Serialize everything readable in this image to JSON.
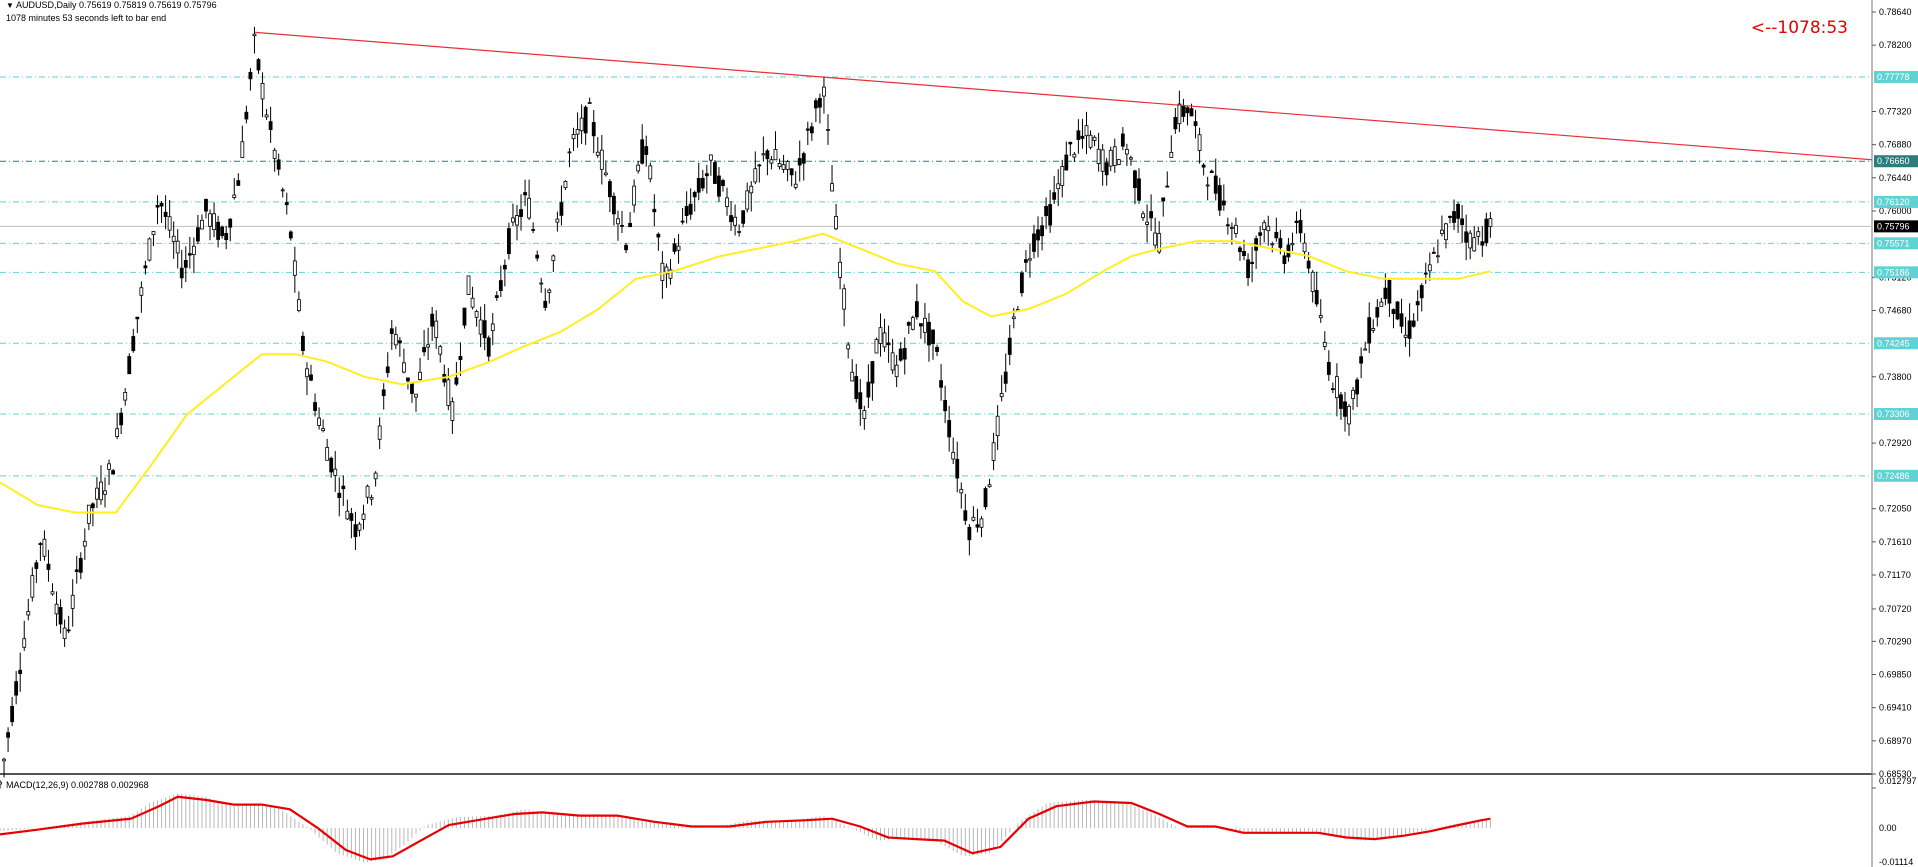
{
  "header": {
    "symbol_line": "AUDUSD,Daily  0.75619 0.75819 0.75619 0.75796",
    "timer_line": "1078 minutes 53 seconds left to bar end"
  },
  "countdown": "<--1078:53",
  "macd": {
    "label": "MACD(12,26,9) 0.002788 0.002968",
    "ticks": [
      "0.012797",
      "0.00",
      "-0.01114"
    ]
  },
  "chart_data": {
    "type": "line",
    "title": "AUDUSD,Daily",
    "price_axis": {
      "ticks": [
        "0.78640",
        "0.78200",
        "0.77320",
        "0.76880",
        "0.76440",
        "0.76000",
        "0.75120",
        "0.74680",
        "0.73800",
        "0.72920",
        "0.72050",
        "0.71610",
        "0.71170",
        "0.70720",
        "0.70290",
        "0.69850",
        "0.69410",
        "0.68970",
        "0.68530"
      ],
      "ylim": [
        0.6853,
        0.7864
      ]
    },
    "current_price": "0.75796",
    "horizontal_levels": [
      {
        "label": "0.77778",
        "value": 0.77778,
        "color": "#5fd3d3"
      },
      {
        "label": "0.76660",
        "value": 0.7666,
        "color": "#2e7d7d"
      },
      {
        "label": "0.76120",
        "value": 0.7612,
        "color": "#5fd3d3"
      },
      {
        "label": "0.75571",
        "value": 0.75571,
        "color": "#5fd3d3"
      },
      {
        "label": "0.75186",
        "value": 0.75186,
        "color": "#5fd3d3"
      },
      {
        "label": "0.74245",
        "value": 0.74245,
        "color": "#5fd3d3"
      },
      {
        "label": "0.73306",
        "value": 0.73306,
        "color": "#5fd3d3"
      },
      {
        "label": "0.72486",
        "value": 0.72486,
        "color": "#5fd3d3"
      }
    ],
    "trendline": {
      "color": "#e8303a",
      "from_bar": 0.1365,
      "to_bar": 1.0,
      "start": 0.7837,
      "end": 0.7668
    },
    "price_path": [
      [
        0,
        0.684
      ],
      [
        0.01,
        0.699
      ],
      [
        0.022,
        0.717
      ],
      [
        0.035,
        0.703
      ],
      [
        0.048,
        0.72
      ],
      [
        0.06,
        0.726
      ],
      [
        0.072,
        0.744
      ],
      [
        0.085,
        0.762
      ],
      [
        0.098,
        0.752
      ],
      [
        0.11,
        0.76
      ],
      [
        0.12,
        0.756
      ],
      [
        0.128,
        0.765
      ],
      [
        0.136,
        0.782
      ],
      [
        0.145,
        0.77
      ],
      [
        0.155,
        0.758
      ],
      [
        0.162,
        0.742
      ],
      [
        0.17,
        0.733
      ],
      [
        0.178,
        0.726
      ],
      [
        0.19,
        0.718
      ],
      [
        0.2,
        0.724
      ],
      [
        0.21,
        0.745
      ],
      [
        0.222,
        0.735
      ],
      [
        0.232,
        0.746
      ],
      [
        0.242,
        0.733
      ],
      [
        0.25,
        0.75
      ],
      [
        0.262,
        0.742
      ],
      [
        0.272,
        0.756
      ],
      [
        0.282,
        0.762
      ],
      [
        0.292,
        0.748
      ],
      [
        0.305,
        0.768
      ],
      [
        0.315,
        0.773
      ],
      [
        0.325,
        0.764
      ],
      [
        0.335,
        0.756
      ],
      [
        0.345,
        0.77
      ],
      [
        0.355,
        0.75
      ],
      [
        0.368,
        0.76
      ],
      [
        0.38,
        0.766
      ],
      [
        0.395,
        0.758
      ],
      [
        0.41,
        0.768
      ],
      [
        0.425,
        0.764
      ],
      [
        0.435,
        0.772
      ],
      [
        0.44,
        0.777
      ],
      [
        0.447,
        0.758
      ],
      [
        0.455,
        0.74
      ],
      [
        0.462,
        0.732
      ],
      [
        0.47,
        0.744
      ],
      [
        0.48,
        0.739
      ],
      [
        0.49,
        0.747
      ],
      [
        0.5,
        0.742
      ],
      [
        0.51,
        0.728
      ],
      [
        0.518,
        0.718
      ],
      [
        0.526,
        0.72
      ],
      [
        0.534,
        0.732
      ],
      [
        0.544,
        0.748
      ],
      [
        0.552,
        0.756
      ],
      [
        0.562,
        0.76
      ],
      [
        0.572,
        0.768
      ],
      [
        0.582,
        0.77
      ],
      [
        0.592,
        0.766
      ],
      [
        0.602,
        0.769
      ],
      [
        0.612,
        0.76
      ],
      [
        0.62,
        0.756
      ],
      [
        0.628,
        0.772
      ],
      [
        0.636,
        0.774
      ],
      [
        0.644,
        0.766
      ],
      [
        0.652,
        0.762
      ],
      [
        0.66,
        0.758
      ],
      [
        0.668,
        0.752
      ],
      [
        0.676,
        0.759
      ],
      [
        0.686,
        0.754
      ],
      [
        0.696,
        0.758
      ],
      [
        0.704,
        0.748
      ],
      [
        0.712,
        0.738
      ],
      [
        0.722,
        0.733
      ],
      [
        0.732,
        0.744
      ],
      [
        0.742,
        0.75
      ],
      [
        0.752,
        0.743
      ],
      [
        0.762,
        0.75
      ],
      [
        0.77,
        0.756
      ],
      [
        0.78,
        0.76
      ],
      [
        0.786,
        0.756
      ],
      [
        0.793,
        0.757
      ],
      [
        0.797,
        0.758
      ]
    ],
    "ma_path": [
      [
        0,
        0.724
      ],
      [
        0.02,
        0.721
      ],
      [
        0.04,
        0.72
      ],
      [
        0.062,
        0.72
      ],
      [
        0.08,
        0.726
      ],
      [
        0.1,
        0.733
      ],
      [
        0.12,
        0.737
      ],
      [
        0.14,
        0.741
      ],
      [
        0.158,
        0.741
      ],
      [
        0.175,
        0.74
      ],
      [
        0.195,
        0.738
      ],
      [
        0.215,
        0.737
      ],
      [
        0.24,
        0.738
      ],
      [
        0.262,
        0.74
      ],
      [
        0.28,
        0.742
      ],
      [
        0.3,
        0.744
      ],
      [
        0.32,
        0.747
      ],
      [
        0.34,
        0.751
      ],
      [
        0.36,
        0.752
      ],
      [
        0.385,
        0.754
      ],
      [
        0.405,
        0.755
      ],
      [
        0.425,
        0.756
      ],
      [
        0.44,
        0.757
      ],
      [
        0.46,
        0.755
      ],
      [
        0.48,
        0.753
      ],
      [
        0.5,
        0.752
      ],
      [
        0.515,
        0.748
      ],
      [
        0.53,
        0.746
      ],
      [
        0.55,
        0.747
      ],
      [
        0.57,
        0.749
      ],
      [
        0.59,
        0.752
      ],
      [
        0.605,
        0.754
      ],
      [
        0.62,
        0.755
      ],
      [
        0.64,
        0.756
      ],
      [
        0.66,
        0.756
      ],
      [
        0.68,
        0.755
      ],
      [
        0.7,
        0.754
      ],
      [
        0.72,
        0.752
      ],
      [
        0.74,
        0.751
      ],
      [
        0.76,
        0.751
      ],
      [
        0.78,
        0.751
      ],
      [
        0.797,
        0.752
      ]
    ],
    "macd_hist_path": [
      [
        0,
        -0.001
      ],
      [
        0.02,
        0.0
      ],
      [
        0.045,
        0.002
      ],
      [
        0.07,
        0.004
      ],
      [
        0.08,
        0.008
      ],
      [
        0.095,
        0.011
      ],
      [
        0.11,
        0.01
      ],
      [
        0.125,
        0.007
      ],
      [
        0.14,
        0.008
      ],
      [
        0.15,
        0.006
      ],
      [
        0.165,
        0.0
      ],
      [
        0.18,
        -0.008
      ],
      [
        0.195,
        -0.011
      ],
      [
        0.205,
        -0.01
      ],
      [
        0.215,
        -0.006
      ],
      [
        0.228,
        0.001
      ],
      [
        0.245,
        0.0035
      ],
      [
        0.265,
        0.004
      ],
      [
        0.28,
        0.006
      ],
      [
        0.3,
        0.004
      ],
      [
        0.32,
        0.0045
      ],
      [
        0.34,
        0.003
      ],
      [
        0.36,
        0.001
      ],
      [
        0.38,
        0.0
      ],
      [
        0.4,
        0.0025
      ],
      [
        0.42,
        0.002
      ],
      [
        0.44,
        0.004
      ],
      [
        0.455,
        0.0
      ],
      [
        0.47,
        -0.004
      ],
      [
        0.485,
        -0.003
      ],
      [
        0.5,
        -0.004
      ],
      [
        0.515,
        -0.009
      ],
      [
        0.53,
        -0.008
      ],
      [
        0.545,
        0.002
      ],
      [
        0.56,
        0.008
      ],
      [
        0.58,
        0.009
      ],
      [
        0.6,
        0.0085
      ],
      [
        0.615,
        0.005
      ],
      [
        0.63,
        0.0
      ],
      [
        0.645,
        0.001
      ],
      [
        0.66,
        -0.001
      ],
      [
        0.68,
        -0.002
      ],
      [
        0.7,
        -0.001
      ],
      [
        0.715,
        -0.003
      ],
      [
        0.73,
        -0.004
      ],
      [
        0.745,
        -0.003
      ],
      [
        0.76,
        -0.001
      ],
      [
        0.775,
        0.001
      ],
      [
        0.79,
        0.0025
      ],
      [
        0.797,
        0.0028
      ]
    ],
    "macd_signal_path": [
      [
        0,
        -0.002
      ],
      [
        0.02,
        -0.0005
      ],
      [
        0.045,
        0.0015
      ],
      [
        0.07,
        0.003
      ],
      [
        0.085,
        0.007
      ],
      [
        0.095,
        0.01
      ],
      [
        0.11,
        0.009
      ],
      [
        0.125,
        0.0075
      ],
      [
        0.14,
        0.0075
      ],
      [
        0.155,
        0.006
      ],
      [
        0.17,
        0.0
      ],
      [
        0.185,
        -0.007
      ],
      [
        0.198,
        -0.01
      ],
      [
        0.21,
        -0.009
      ],
      [
        0.225,
        -0.004
      ],
      [
        0.24,
        0.001
      ],
      [
        0.26,
        0.003
      ],
      [
        0.275,
        0.0045
      ],
      [
        0.29,
        0.005
      ],
      [
        0.31,
        0.004
      ],
      [
        0.33,
        0.004
      ],
      [
        0.35,
        0.002
      ],
      [
        0.37,
        0.0005
      ],
      [
        0.39,
        0.0005
      ],
      [
        0.41,
        0.002
      ],
      [
        0.43,
        0.0025
      ],
      [
        0.445,
        0.003
      ],
      [
        0.46,
        0.0005
      ],
      [
        0.475,
        -0.003
      ],
      [
        0.49,
        -0.0035
      ],
      [
        0.505,
        -0.004
      ],
      [
        0.52,
        -0.008
      ],
      [
        0.535,
        -0.006
      ],
      [
        0.55,
        0.003
      ],
      [
        0.565,
        0.007
      ],
      [
        0.585,
        0.0085
      ],
      [
        0.605,
        0.008
      ],
      [
        0.62,
        0.0045
      ],
      [
        0.635,
        0.0005
      ],
      [
        0.65,
        0.0005
      ],
      [
        0.665,
        -0.0015
      ],
      [
        0.685,
        -0.0015
      ],
      [
        0.705,
        -0.0015
      ],
      [
        0.72,
        -0.003
      ],
      [
        0.735,
        -0.0035
      ],
      [
        0.75,
        -0.0025
      ],
      [
        0.765,
        -0.001
      ],
      [
        0.78,
        0.001
      ],
      [
        0.792,
        0.0025
      ],
      [
        0.797,
        0.003
      ]
    ],
    "macd_ylim": [
      -0.01114,
      0.012797
    ],
    "colors": {
      "candle": "#000000",
      "ma": "#ffee22",
      "trendline": "#e8303a",
      "macd_signal": "#e80000",
      "macd_hist": "#b8b8b8",
      "level": "#5fd3d3",
      "current_price_bg": "#000000"
    }
  }
}
